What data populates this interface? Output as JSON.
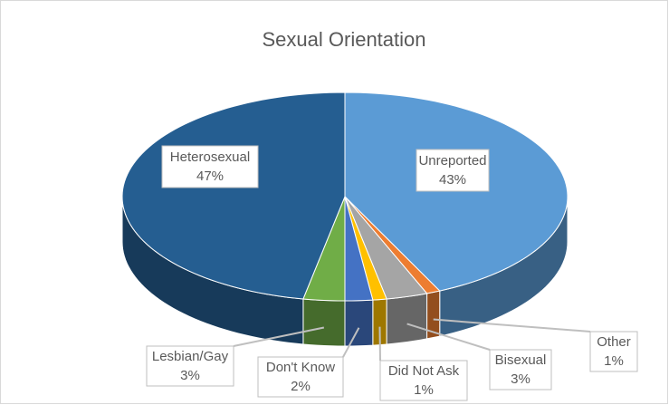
{
  "chart_data": {
    "type": "pie3d",
    "title": "Sexual Orientation",
    "categories": [
      "Unreported",
      "Other",
      "Bisexual",
      "Did Not Ask",
      "Don't Know",
      "Lesbian/Gay",
      "Heterosexual"
    ],
    "values": [
      43,
      1,
      3,
      1,
      2,
      3,
      47
    ],
    "value_labels": [
      "43%",
      "1%",
      "3%",
      "1%",
      "2%",
      "3%",
      "47%"
    ],
    "colors": [
      "#5b9bd5",
      "#ed7d31",
      "#a5a5a5",
      "#ffc000",
      "#4472c4",
      "#70ad47",
      "#255e91"
    ]
  }
}
